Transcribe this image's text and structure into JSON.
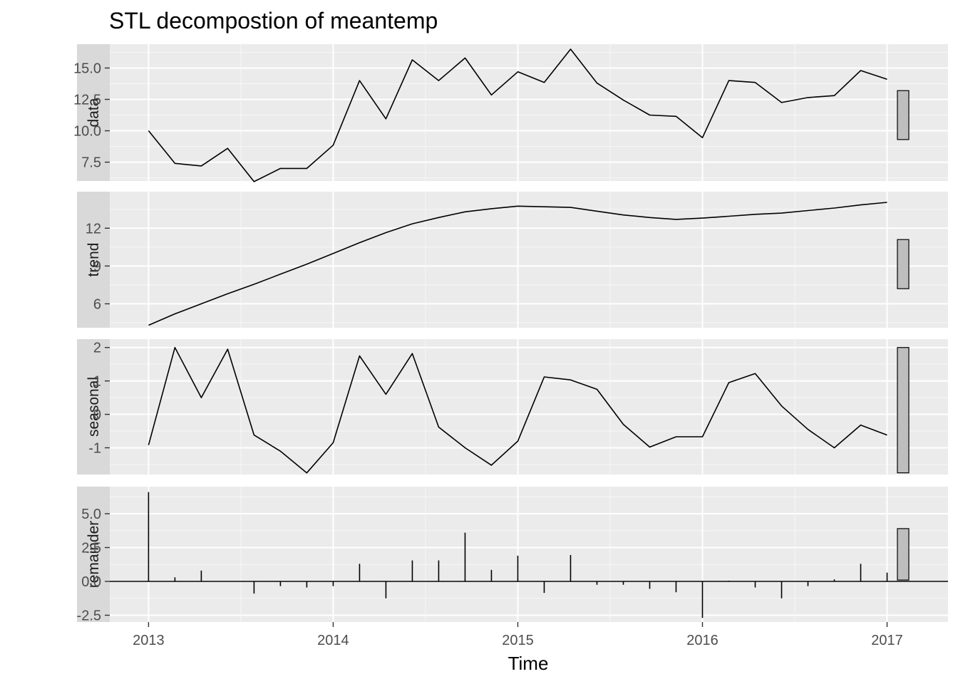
{
  "chart_data": {
    "type": "line",
    "title": "STL decompostion of meantemp",
    "xlabel": "Time",
    "x_ticks": [
      "2013",
      "2014",
      "2015",
      "2016",
      "2017"
    ],
    "x_range": [
      2012.79,
      2017.33
    ],
    "x": [
      2013.0,
      2013.1429,
      2013.2857,
      2013.4286,
      2013.5714,
      2013.7143,
      2013.8571,
      2014.0,
      2014.1429,
      2014.2857,
      2014.4286,
      2014.5714,
      2014.7143,
      2014.8571,
      2015.0,
      2015.1429,
      2015.2857,
      2015.4286,
      2015.5714,
      2015.7143,
      2015.8571,
      2016.0,
      2016.1429,
      2016.2857,
      2016.4286,
      2016.5714,
      2016.7143,
      2016.8571,
      2017.0
    ],
    "grid": true,
    "panels": [
      {
        "name": "data",
        "type": "line",
        "ylim": [
          6.0,
          16.9
        ],
        "y_ticks": [
          {
            "value": 7.5,
            "label": "7.5"
          },
          {
            "value": 10.0,
            "label": "10.0"
          },
          {
            "value": 12.5,
            "label": "12.5"
          },
          {
            "value": 15.0,
            "label": "15.0"
          }
        ],
        "values": [
          10.0,
          7.4,
          7.2,
          8.6,
          5.95,
          7.0,
          7.0,
          8.85,
          14.0,
          10.95,
          15.65,
          14.0,
          15.8,
          12.85,
          14.7,
          13.85,
          16.5,
          13.8,
          12.45,
          11.25,
          11.15,
          9.45,
          14.0,
          13.85,
          12.25,
          12.65,
          12.8,
          14.8,
          14.1
        ],
        "scale_bar": [
          9.3,
          13.2
        ]
      },
      {
        "name": "trend",
        "type": "line",
        "ylim": [
          4.1,
          14.9
        ],
        "y_ticks": [
          {
            "value": 6,
            "label": "6"
          },
          {
            "value": 9,
            "label": "9"
          },
          {
            "value": 12,
            "label": "12"
          }
        ],
        "values": [
          4.3,
          5.2,
          6.0,
          6.8,
          7.55,
          8.35,
          9.15,
          10.0,
          10.85,
          11.65,
          12.35,
          12.85,
          13.3,
          13.55,
          13.75,
          13.7,
          13.65,
          13.35,
          13.05,
          12.85,
          12.7,
          12.8,
          12.95,
          13.1,
          13.2,
          13.4,
          13.6,
          13.85,
          14.05
        ],
        "scale_bar": [
          7.2,
          11.1
        ]
      },
      {
        "name": "seasonal",
        "type": "line",
        "ylim": [
          -1.8,
          2.25
        ],
        "y_ticks": [
          {
            "value": -1,
            "label": "-1"
          },
          {
            "value": 0,
            "label": "0"
          },
          {
            "value": 1,
            "label": "1"
          },
          {
            "value": 2,
            "label": "2"
          }
        ],
        "values": [
          -0.92,
          2.0,
          0.5,
          1.95,
          -0.62,
          -1.1,
          -1.75,
          -0.85,
          1.75,
          0.6,
          1.82,
          -0.38,
          -1.0,
          -1.52,
          -0.8,
          1.12,
          1.03,
          0.75,
          -0.3,
          -0.98,
          -0.67,
          -0.67,
          0.95,
          1.22,
          0.25,
          -0.45,
          -1.0,
          -0.32,
          -0.62
        ],
        "scale_bar": [
          -1.75,
          2.0
        ]
      },
      {
        "name": "remainder",
        "type": "bar",
        "ylim": [
          -3.0,
          7.0
        ],
        "y_ticks": [
          {
            "value": -2.5,
            "label": "-2.5"
          },
          {
            "value": 0.0,
            "label": "0.0"
          },
          {
            "value": 2.5,
            "label": "2.5"
          },
          {
            "value": 5.0,
            "label": "5.0"
          }
        ],
        "values": [
          6.6,
          0.3,
          0.8,
          0.0,
          -0.9,
          -0.35,
          -0.45,
          -0.35,
          1.3,
          -1.25,
          1.55,
          1.55,
          3.6,
          0.85,
          1.9,
          -0.85,
          1.95,
          -0.25,
          -0.25,
          -0.55,
          -0.8,
          -2.7,
          0.05,
          -0.45,
          -1.25,
          -0.35,
          0.15,
          1.3,
          0.65
        ],
        "scale_bar": [
          0.1,
          3.9
        ]
      }
    ]
  }
}
